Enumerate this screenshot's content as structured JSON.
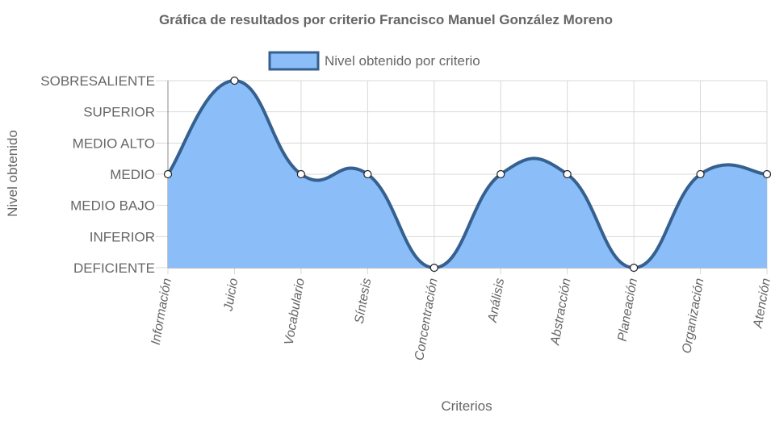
{
  "chart_data": {
    "type": "area",
    "title": "Gráfica de resultados por criterio Francisco Manuel González Moreno",
    "xlabel": "Criterios",
    "ylabel": "Nivel obtenido",
    "categories": [
      "Información",
      "Juicio",
      "Vocabulario",
      "Síntesis",
      "Concentración",
      "Análisis",
      "Abstracción",
      "Planeación",
      "Organización",
      "Atención"
    ],
    "y_levels": [
      "DEFICIENTE",
      "INFERIOR",
      "MEDIO BAJO",
      "MEDIO",
      "MEDIO ALTO",
      "SUPERIOR",
      "SOBRESALIENTE"
    ],
    "series": [
      {
        "name": "Nivel obtenido por criterio",
        "values": [
          "MEDIO",
          "SOBRESALIENTE",
          "MEDIO",
          "MEDIO",
          "DEFICIENTE",
          "MEDIO",
          "MEDIO",
          "DEFICIENTE",
          "MEDIO",
          "MEDIO"
        ]
      }
    ],
    "legend_position": "top",
    "grid": true,
    "colors": {
      "fill": "#8bbdf8",
      "line": "#35608f",
      "grid": "#d8d8d8",
      "axis": "#888888",
      "text": "#666666"
    }
  }
}
